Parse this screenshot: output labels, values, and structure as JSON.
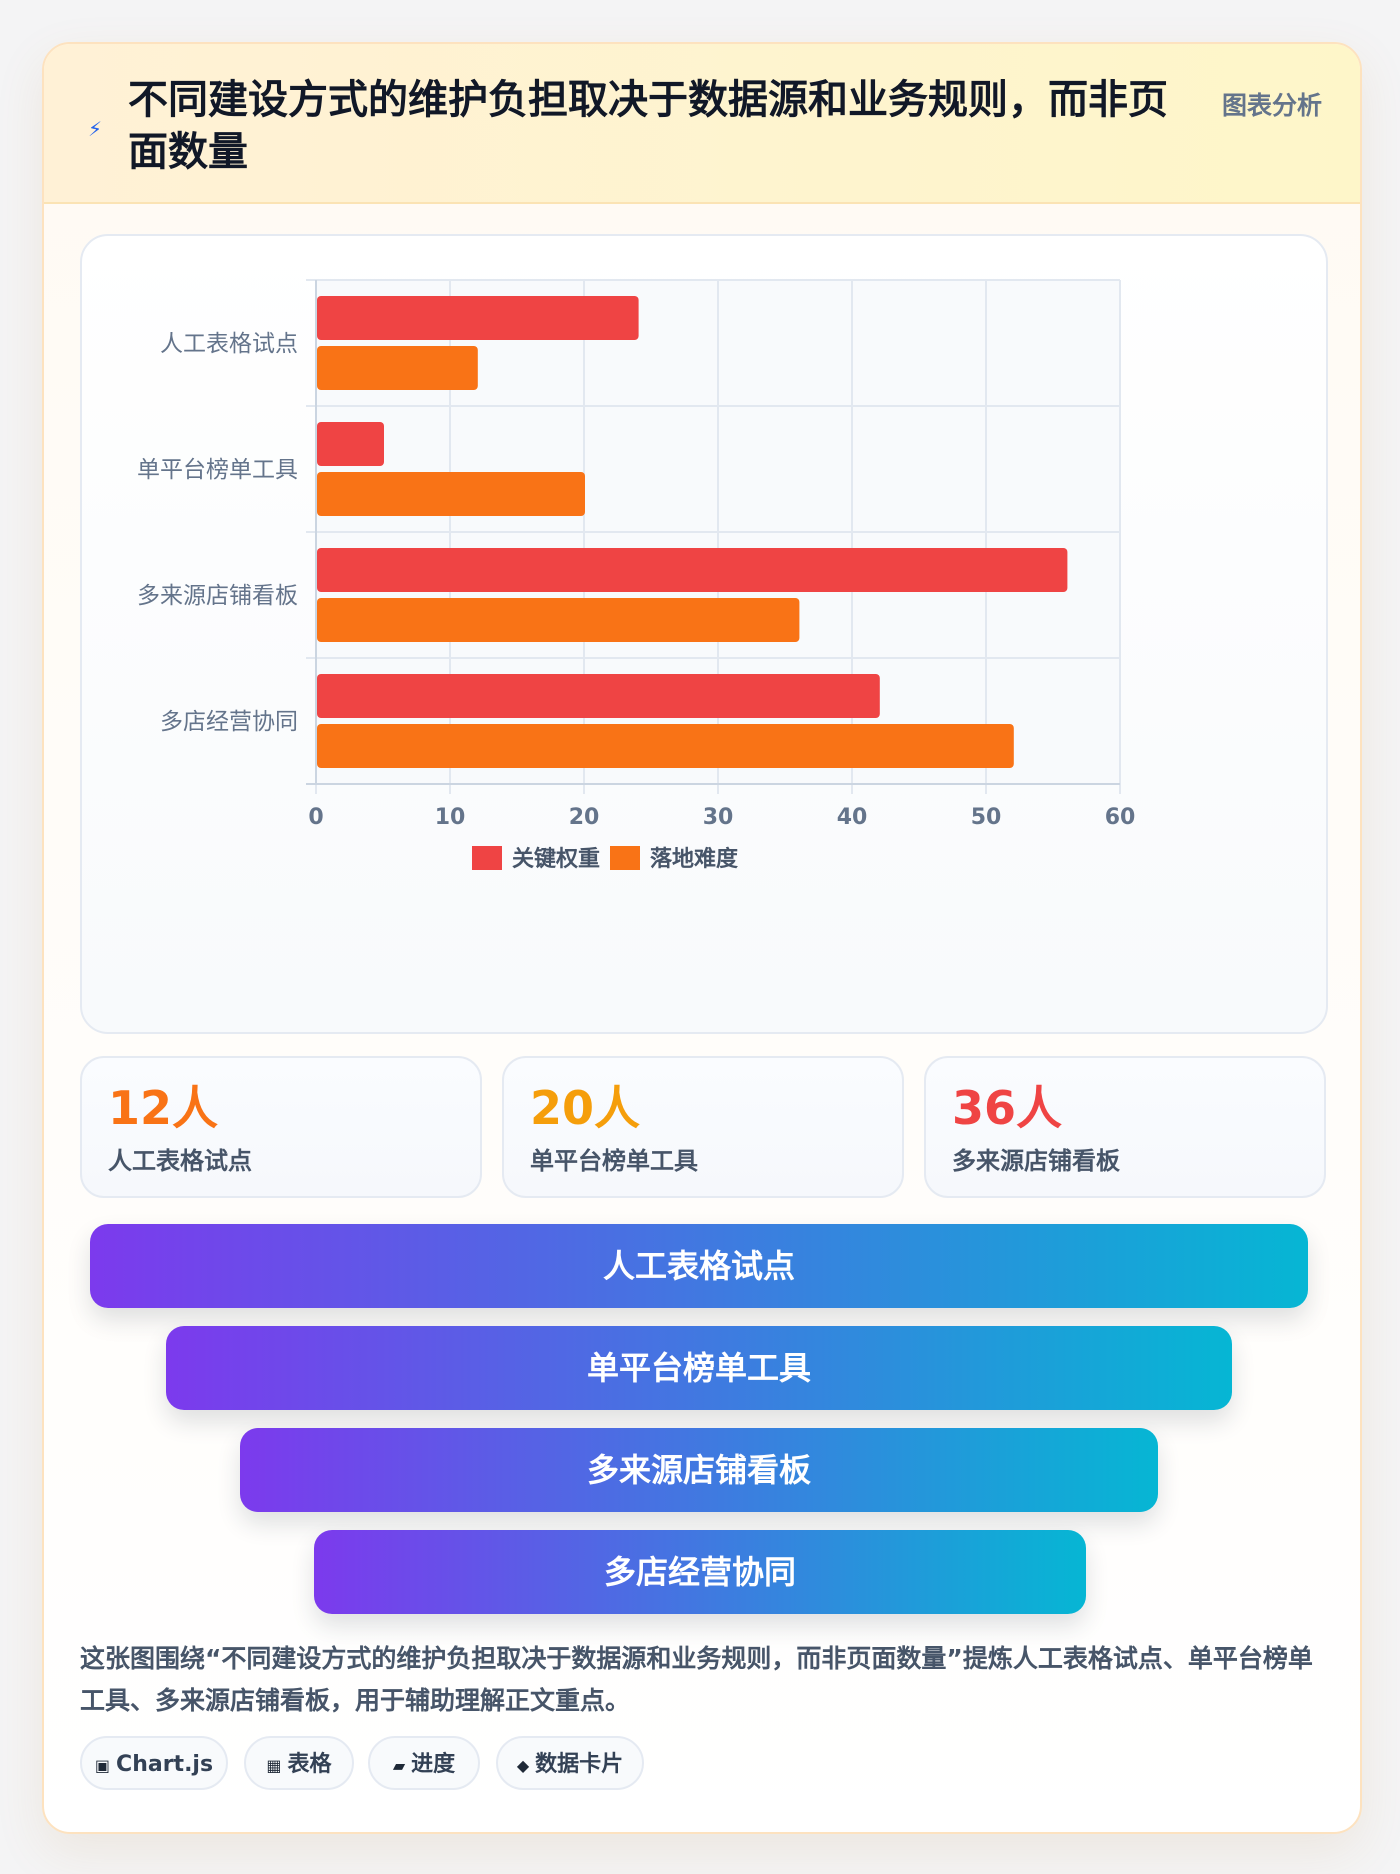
{
  "header": {
    "icon": "lightning-icon",
    "title": "不同建设方式的维护负担取决于数据源和业务规则，而非页面数量",
    "tag": "图表分析"
  },
  "chart_data": {
    "type": "bar",
    "orientation": "horizontal",
    "categories": [
      "人工表格试点",
      "单平台榜单工具",
      "多来源店铺看板",
      "多店经营协同"
    ],
    "series": [
      {
        "name": "关键权重",
        "color": "#ef4444",
        "values": [
          24,
          5,
          56,
          42
        ]
      },
      {
        "name": "落地难度",
        "color": "#f97316",
        "values": [
          12,
          20,
          36,
          52
        ]
      }
    ],
    "xlim": [
      0,
      60
    ],
    "xticks": [
      0,
      10,
      20,
      30,
      40,
      50,
      60
    ],
    "grid": true,
    "legend": "bottom"
  },
  "stats": [
    {
      "value": "12人",
      "label": "人工表格试点",
      "color": "#f97316"
    },
    {
      "value": "20人",
      "label": "单平台榜单工具",
      "color": "#f59e0b"
    },
    {
      "value": "36人",
      "label": "多来源店铺看板",
      "color": "#ef4444"
    }
  ],
  "funnel": [
    "人工表格试点",
    "单平台榜单工具",
    "多来源店铺看板",
    "多店经营协同"
  ],
  "summary": "这张图围绕“不同建设方式的维护负担取决于数据源和业务规则，而非页面数量”提炼人工表格试点、单平台榜单工具、多来源店铺看板，用于辅助理解正文重点。",
  "chips": [
    {
      "icon": "▣",
      "label": "Chart.js"
    },
    {
      "icon": "▦",
      "label": "表格"
    },
    {
      "icon": "▰",
      "label": "进度"
    },
    {
      "icon": "◆",
      "label": "数据卡片"
    }
  ]
}
